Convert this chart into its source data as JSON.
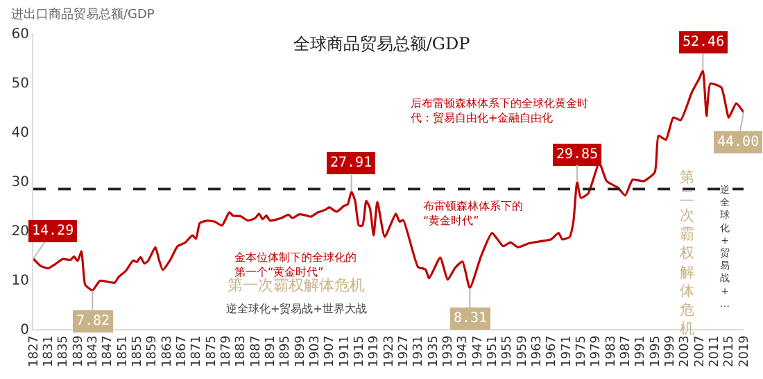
{
  "chart_data": {
    "type": "line",
    "title": "全球商品贸易总额/GDP",
    "ylabel": "进出口商品贸易总额/GDP",
    "x": [
      1827,
      1829,
      1831,
      1833,
      1835,
      1837,
      1838,
      1839,
      1840,
      1841,
      1842,
      1843,
      1845,
      1847,
      1849,
      1850,
      1852,
      1854,
      1855,
      1856,
      1857,
      1858,
      1860,
      1861,
      1862,
      1864,
      1866,
      1868,
      1870,
      1871,
      1872,
      1874,
      1876,
      1878,
      1880,
      1881,
      1883,
      1885,
      1887,
      1888,
      1889,
      1890,
      1891,
      1894,
      1896,
      1897,
      1899,
      1901,
      1902,
      1904,
      1906,
      1907,
      1909,
      1911,
      1912,
      1913,
      1914,
      1915,
      1916,
      1917,
      1918,
      1919,
      1920,
      1922,
      1925,
      1926,
      1927,
      1931,
      1933,
      1934,
      1937,
      1939,
      1941,
      1943,
      1945,
      1948,
      1951,
      1954,
      1956,
      1958,
      1961,
      1965,
      1967,
      1969,
      1970,
      1972,
      1973,
      1974,
      1975,
      1977,
      1980,
      1982,
      1985,
      1987,
      1989,
      1992,
      1995,
      1996,
      1998,
      2000,
      2002,
      2005,
      2007,
      2008,
      2009,
      2010,
      2013,
      2015,
      2017,
      2019
    ],
    "series": [
      {
        "color": "#c00000",
        "values": [
          14.29,
          12.8,
          12.3,
          13.2,
          14.2,
          14.0,
          14.7,
          13.8,
          15.8,
          9.0,
          8.3,
          7.82,
          9.8,
          9.6,
          9.4,
          10.5,
          11.8,
          13.9,
          13.6,
          14.6,
          13.3,
          13.8,
          16.6,
          14.0,
          12.0,
          14.0,
          16.8,
          17.5,
          19.0,
          18.3,
          21.5,
          22.0,
          21.8,
          21.0,
          23.7,
          23.0,
          22.9,
          22.0,
          22.5,
          23.4,
          22.3,
          23.0,
          22.0,
          22.5,
          23.2,
          22.5,
          23.3,
          23.0,
          22.8,
          23.7,
          24.2,
          24.7,
          23.8,
          25.0,
          25.3,
          27.91,
          26.0,
          21.0,
          21.0,
          26.0,
          24.5,
          19.0,
          25.8,
          18.7,
          23.4,
          21.8,
          22.1,
          12.6,
          12.1,
          10.3,
          14.5,
          10.0,
          12.4,
          13.7,
          8.31,
          14.7,
          19.5,
          16.8,
          17.6,
          16.6,
          17.4,
          17.9,
          18.2,
          19.5,
          18.2,
          18.7,
          21.8,
          29.85,
          26.6,
          27.5,
          33.7,
          30.0,
          28.7,
          27.1,
          30.3,
          30.0,
          31.8,
          39.2,
          38.4,
          42.9,
          42.4,
          48.0,
          50.8,
          52.46,
          43.2,
          49.8,
          49.0,
          42.9,
          45.8,
          44.0
        ]
      }
    ],
    "xlim": [
      1827,
      2019
    ],
    "xticks": [
      1827,
      1831,
      1835,
      1839,
      1843,
      1847,
      1851,
      1855,
      1859,
      1863,
      1867,
      1871,
      1875,
      1879,
      1883,
      1887,
      1891,
      1895,
      1899,
      1903,
      1907,
      1911,
      1915,
      1919,
      1923,
      1927,
      1931,
      1935,
      1939,
      1943,
      1947,
      1951,
      1955,
      1959,
      1963,
      1967,
      1971,
      1975,
      1979,
      1983,
      1987,
      1991,
      1995,
      1999,
      2003,
      2007,
      2011,
      2015,
      2019
    ],
    "ylim": [
      0,
      60
    ],
    "yticks": [
      0,
      10,
      20,
      30,
      40,
      50,
      60
    ],
    "marker": "none",
    "line_style": "solid",
    "ref_lines": [
      {
        "axis": "y",
        "value": 28.4,
        "color": "#222222",
        "line_style": "dashed"
      }
    ],
    "annotations": [
      {
        "text": "14.29",
        "x": 1827,
        "y": 14.29
      },
      {
        "text": "7.82",
        "x": 1843,
        "y": 7.82
      },
      {
        "text": "27.91",
        "x": 1913,
        "y": 27.91
      },
      {
        "text": "8.31",
        "x": 1945,
        "y": 8.31
      },
      {
        "text": "29.85",
        "x": 1974,
        "y": 29.85
      },
      {
        "text": "52.46",
        "x": 2008,
        "y": 52.46
      },
      {
        "text": "44.00",
        "x": 2019,
        "y": 44.0
      },
      "金本位体制下的全球化的第一个“黄金时代”",
      "第一次霸权解体危机",
      "逆全球化+贸易战+世界大战",
      "布雷顿森林体系下的“黄金时代”",
      "后布雷顿森林体系下的全球化黄金时代：贸易自由化+金融自由化",
      "第二次霸权解体危机",
      "逆全球化+贸易战+…"
    ]
  }
}
